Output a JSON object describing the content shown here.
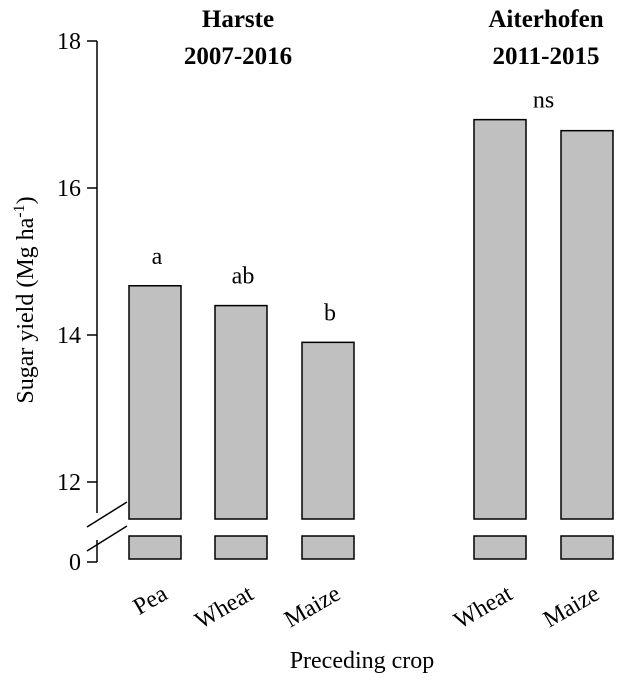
{
  "chart_data": {
    "type": "bar",
    "ylabel": "Sugar yield (Mg ha",
    "ylabel_superscript": "-1",
    "ylabel_suffix": ")",
    "xlabel": "Preceding crop",
    "yaxis": {
      "ticks": [
        12,
        14,
        16,
        18
      ],
      "break_tick": 0,
      "ylim": [
        11.5,
        18
      ],
      "has_axis_break": true
    },
    "bar_color": "#c0c0c0",
    "groups": [
      {
        "title_line1": "Harste",
        "title_line2": "2007-2016",
        "categories": [
          "Pea",
          "Wheat",
          "Maize"
        ],
        "values": [
          14.67,
          14.4,
          13.9
        ],
        "letters": [
          "a",
          "ab",
          "b"
        ]
      },
      {
        "title_line1": "Aiterhofen",
        "title_line2": "2011-2015",
        "categories": [
          "Wheat",
          "Maize"
        ],
        "values": [
          16.93,
          16.78
        ],
        "letters": [
          "ns"
        ]
      }
    ]
  }
}
